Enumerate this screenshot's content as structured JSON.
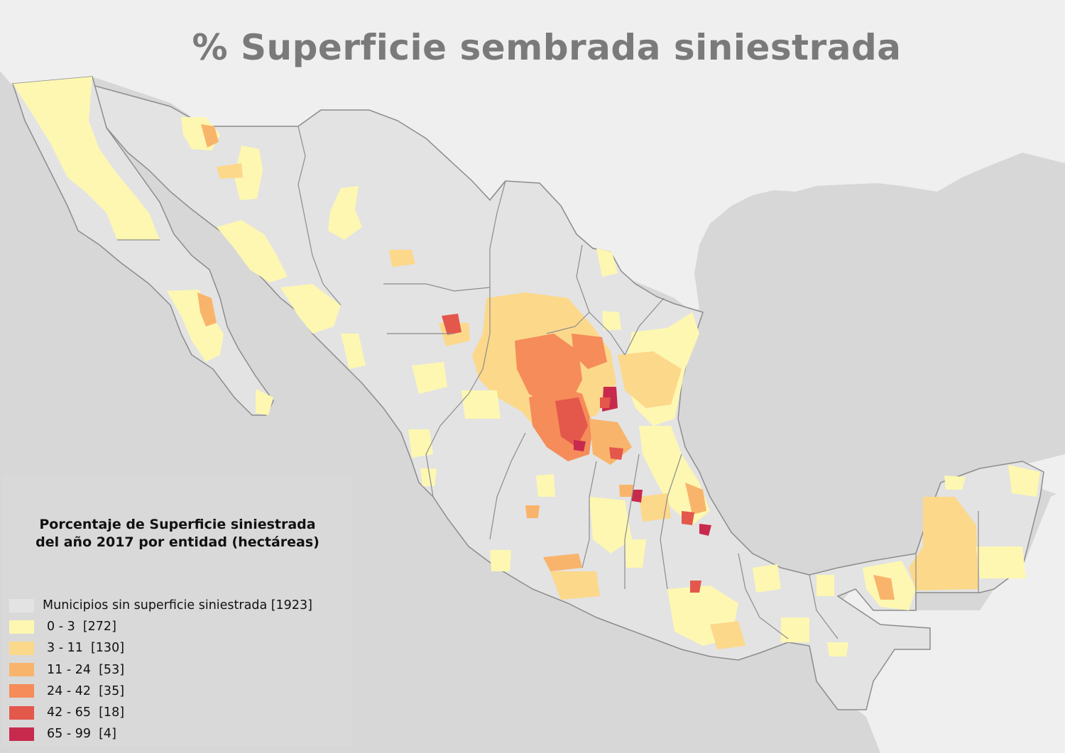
{
  "map": {
    "title": "% Superficie sembrada siniestrada",
    "colors": {
      "ocean": "#d7d7d7",
      "land_other": "#efefef",
      "no_data": "#e3e3e3",
      "border": "#8c8c8c",
      "class_0_3": "#fdf7b2",
      "class_3_11": "#fcd88a",
      "class_11_24": "#f9b46b",
      "class_24_42": "#f58c59",
      "class_42_65": "#e4574b",
      "class_65_99": "#c72a4d"
    }
  },
  "legend": {
    "title_line1": "Porcentaje de Superficie siniestrada",
    "title_line2": "del año 2017 por entidad (hectáreas)",
    "items": [
      {
        "label": "Municipios sin superficie siniestrada [1923]",
        "color": "#e3e3e3"
      },
      {
        "label": "0 - 3  [272]",
        "color": "#fdf7b2"
      },
      {
        "label": "3 - 11  [130]",
        "color": "#fcd88a"
      },
      {
        "label": "11 - 24  [53]",
        "color": "#f9b46b"
      },
      {
        "label": "24 - 42  [35]",
        "color": "#f58c59"
      },
      {
        "label": "42 - 65  [18]",
        "color": "#e4574b"
      },
      {
        "label": "65 - 99  [4]",
        "color": "#c72a4d"
      }
    ]
  }
}
